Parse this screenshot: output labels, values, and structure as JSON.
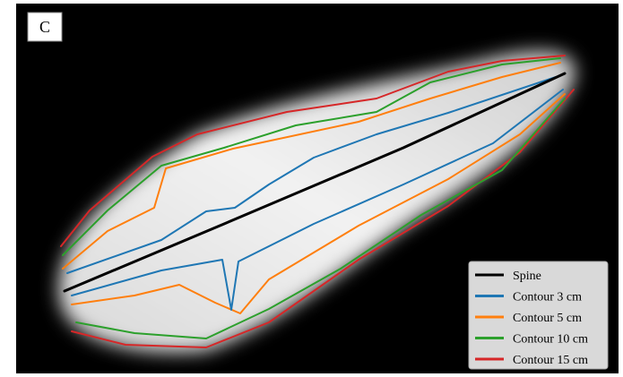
{
  "panel_label": "C",
  "legend": [
    {
      "name": "Spine",
      "color": "#000000"
    },
    {
      "name": "Contour 3 cm",
      "color": "#1f77b4"
    },
    {
      "name": "Contour 5 cm",
      "color": "#ff7f0e"
    },
    {
      "name": "Contour 10 cm",
      "color": "#2ca02c"
    },
    {
      "name": "Contour 15 cm",
      "color": "#d62728"
    }
  ]
}
